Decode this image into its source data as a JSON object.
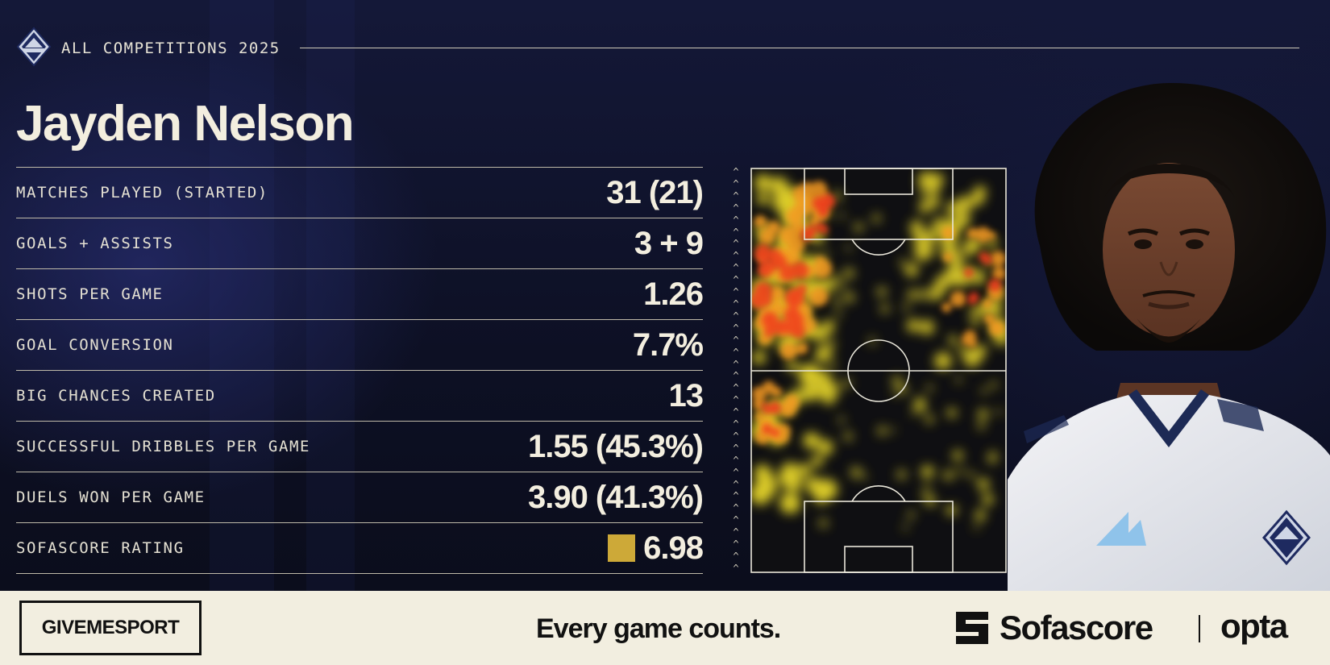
{
  "header": {
    "club_logo_icon": "whitecaps-crest-icon",
    "season_label": "ALL COMPETITIONS 2025"
  },
  "player": {
    "name": "Jayden Nelson"
  },
  "stats": [
    {
      "label": "MATCHES PLAYED (STARTED)",
      "value": "31 (21)"
    },
    {
      "label": "GOALS + ASSISTS",
      "value": "3 + 9"
    },
    {
      "label": "SHOTS PER GAME",
      "value": "1.26"
    },
    {
      "label": "GOAL CONVERSION",
      "value": "7.7%"
    },
    {
      "label": "BIG CHANCES CREATED",
      "value": "13"
    },
    {
      "label": "SUCCESSFUL DRIBBLES PER GAME",
      "value": "1.55 (45.3%)"
    },
    {
      "label": "DUELS WON PER GAME",
      "value": "3.90 (41.3%)"
    },
    {
      "label": "SOFASCORE RATING",
      "value": "6.98"
    }
  ],
  "rating_badge_color": "#cda938",
  "heatmap": {
    "icon": "heatmap-pitch",
    "attack_direction": "up"
  },
  "photo": {
    "icon": "player-portrait",
    "crest_icon": "whitecaps-crest-icon"
  },
  "footer": {
    "publisher": "GIVEMESPORT",
    "tagline": "Every game counts.",
    "sofascore_icon": "sofascore-logo-icon",
    "sofascore_name": "Sofascore",
    "opta_name": "opta"
  },
  "colors": {
    "background": "#0e1020",
    "text": "#efeadb",
    "footer_bg": "#f2eee0"
  }
}
